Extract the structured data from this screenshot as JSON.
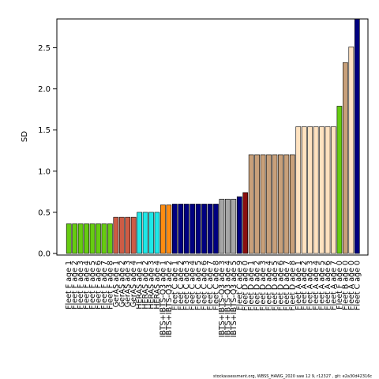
{
  "chart_data": {
    "type": "bar",
    "title": "",
    "xlabel": "",
    "ylabel": "SD",
    "ylim": [
      0,
      2.85
    ],
    "yticks": [
      "0.0",
      "0.5",
      "1.0",
      "1.5",
      "2.0",
      "2.5"
    ],
    "categories": [
      "Fleet F age 1",
      "Fleet F age 2",
      "Fleet F age 3",
      "Fleet F age 4",
      "Fleet F age 5",
      "Fleet F age 6",
      "Fleet F age 7",
      "Fleet F age 8",
      "GerAS age 1",
      "GerAS age 2",
      "GerAS age 3",
      "GerAS age 4",
      "HERAS age 1",
      "HERAS age 2",
      "HERAS age 3",
      "HERAS age 4",
      "IBTS+IBTS-Q3 age 1",
      "IBTS+IBTS-Q3 age 2",
      "Fleet C age 1",
      "Fleet C age 2",
      "Fleet C age 3",
      "Fleet C age 4",
      "Fleet C age 5",
      "Fleet C age 6",
      "Fleet C age 7",
      "Fleet C age 8",
      "IBTS+IBTS-Q3 age 3",
      "IBTS+IBTS-Q3 age 4",
      "IBTS+IBTS-Q3 age 5",
      "Fleet C age 9",
      "Fleet D age 0",
      "Fleet D age 1",
      "Fleet D age 2",
      "Fleet D age 3",
      "Fleet D age 4",
      "Fleet D age 5",
      "Fleet D age 6",
      "Fleet D age 7",
      "Fleet D age 8",
      "Fleet A age 1",
      "Fleet A age 2",
      "Fleet A age 3",
      "Fleet A age 4",
      "Fleet A age 5",
      "Fleet A age 6",
      "Fleet A age 7",
      "Fleet F age 0",
      "Fleet B age 0",
      "Fleet A age 0",
      "Fleet C age 0"
    ],
    "values": [
      0.36,
      0.36,
      0.36,
      0.36,
      0.36,
      0.36,
      0.36,
      0.36,
      0.44,
      0.44,
      0.44,
      0.44,
      0.5,
      0.5,
      0.5,
      0.5,
      0.59,
      0.59,
      0.6,
      0.6,
      0.6,
      0.6,
      0.6,
      0.6,
      0.6,
      0.6,
      0.66,
      0.66,
      0.66,
      0.69,
      0.74,
      1.2,
      1.2,
      1.2,
      1.2,
      1.2,
      1.2,
      1.2,
      1.2,
      1.54,
      1.54,
      1.54,
      1.54,
      1.54,
      1.54,
      1.54,
      1.79,
      2.32,
      2.51,
      2.85
    ],
    "colors": [
      "#66cc11",
      "#66cc11",
      "#66cc11",
      "#66cc11",
      "#66cc11",
      "#66cc11",
      "#66cc11",
      "#66cc11",
      "#cd5c45",
      "#cd5c45",
      "#cd5c45",
      "#cd5c45",
      "#1ee8e8",
      "#1ee8e8",
      "#1ee8e8",
      "#1ee8e8",
      "#ff8c10",
      "#ff8c10",
      "#000080",
      "#000080",
      "#000080",
      "#000080",
      "#000080",
      "#000080",
      "#000080",
      "#000080",
      "#a6a6a6",
      "#a6a6a6",
      "#a6a6a6",
      "#000080",
      "#8b0f0f",
      "#c8a07a",
      "#c8a07a",
      "#c8a07a",
      "#c8a07a",
      "#c8a07a",
      "#c8a07a",
      "#c8a07a",
      "#c8a07a",
      "#ffe2c0",
      "#ffe2c0",
      "#ffe2c0",
      "#ffe2c0",
      "#ffe2c0",
      "#ffe2c0",
      "#ffe2c0",
      "#66cc11",
      "#c8a07a",
      "#ffe2c0",
      "#000080"
    ]
  },
  "footer": "stockassessment.org,  WBSS_HAWG_2020  saw  12  9, r12327 ,  git:  e2a30d42316c"
}
